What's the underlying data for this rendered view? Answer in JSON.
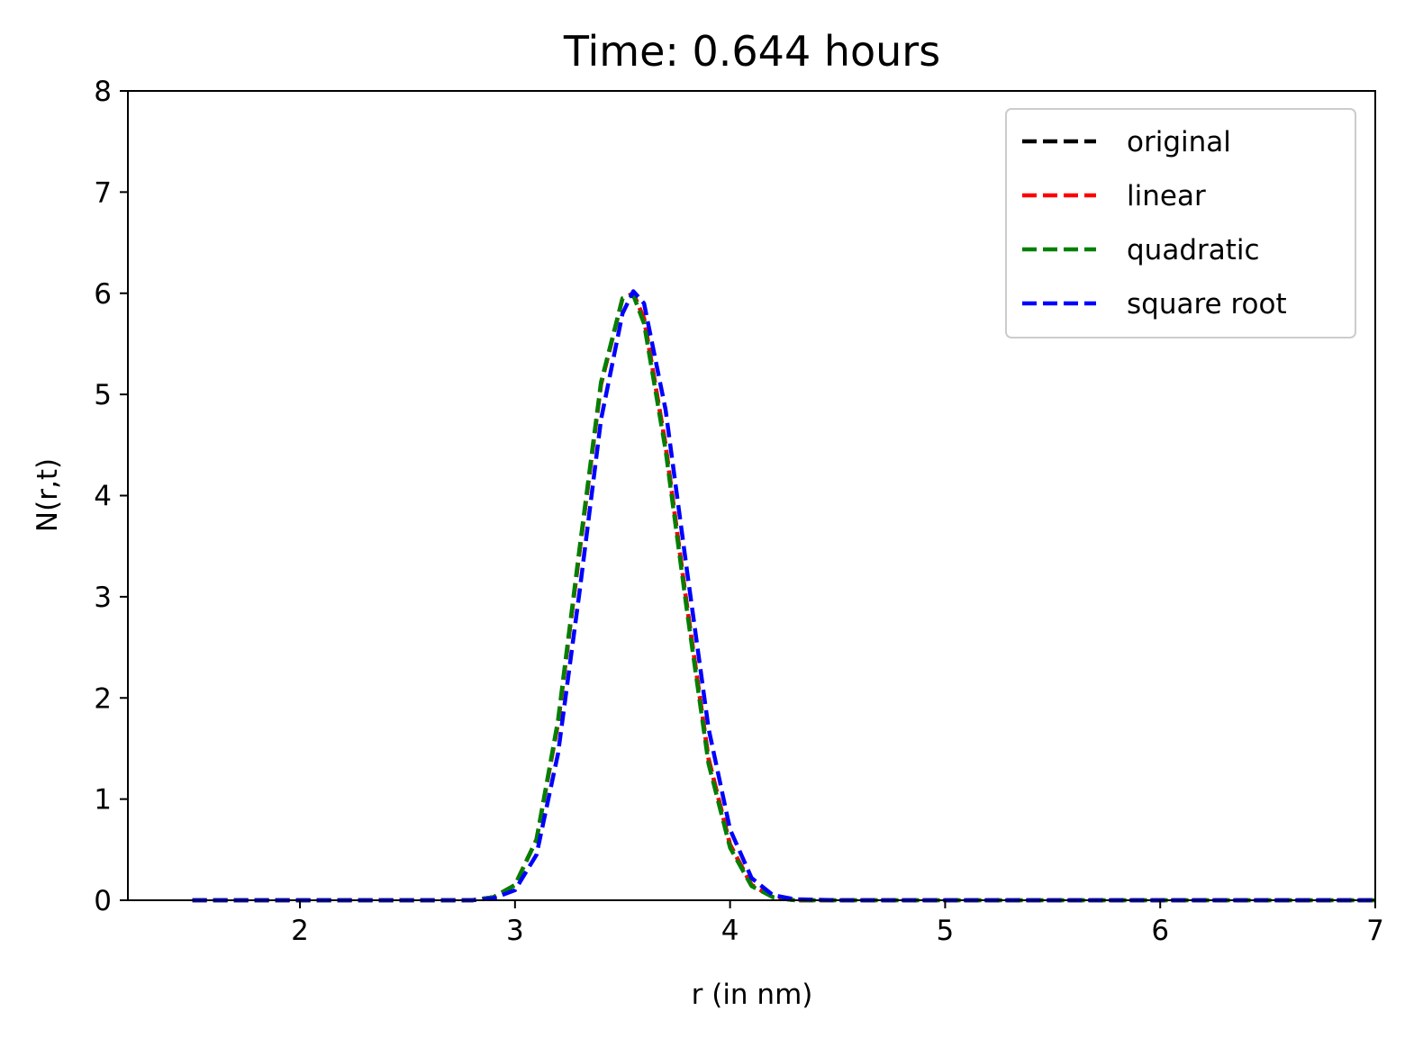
{
  "chart_data": {
    "type": "line",
    "title": "Time: 0.644 hours",
    "xlabel": "r (in nm)",
    "ylabel": "N(r,t)",
    "xlim": [
      1.2,
      7
    ],
    "ylim": [
      0,
      8
    ],
    "xticks": [
      2,
      3,
      4,
      5,
      6,
      7
    ],
    "yticks": [
      0,
      1,
      2,
      3,
      4,
      5,
      6,
      7,
      8
    ],
    "grid": false,
    "legend_position": "upper-right",
    "x": [
      1.5,
      2.0,
      2.5,
      2.8,
      2.9,
      3.0,
      3.1,
      3.2,
      3.3,
      3.4,
      3.5,
      3.55,
      3.6,
      3.7,
      3.8,
      3.9,
      4.0,
      4.1,
      4.2,
      4.3,
      4.5,
      5.0,
      6.0,
      7.0
    ],
    "series": [
      {
        "name": "original",
        "color": "#000000",
        "values": [
          0,
          0,
          0,
          0.0,
          0.03,
          0.15,
          0.6,
          1.75,
          3.45,
          5.1,
          5.95,
          6.0,
          5.75,
          4.5,
          2.9,
          1.4,
          0.55,
          0.15,
          0.03,
          0.0,
          0,
          0,
          0,
          0
        ]
      },
      {
        "name": "linear",
        "color": "#ff0000",
        "values": [
          0,
          0,
          0,
          0.0,
          0.03,
          0.15,
          0.6,
          1.75,
          3.45,
          5.1,
          5.95,
          6.0,
          5.75,
          4.5,
          2.9,
          1.4,
          0.55,
          0.15,
          0.03,
          0.0,
          0,
          0,
          0,
          0
        ]
      },
      {
        "name": "quadratic",
        "color": "#008000",
        "values": [
          0,
          0,
          0,
          0.0,
          0.03,
          0.15,
          0.6,
          1.78,
          3.48,
          5.12,
          5.95,
          5.98,
          5.7,
          4.45,
          2.85,
          1.35,
          0.52,
          0.14,
          0.03,
          0.0,
          0,
          0,
          0,
          0
        ]
      },
      {
        "name": "square root",
        "color": "#0000ff",
        "values": [
          0,
          0,
          0,
          0.0,
          0.02,
          0.1,
          0.45,
          1.45,
          3.05,
          4.75,
          5.8,
          6.02,
          5.9,
          4.85,
          3.25,
          1.7,
          0.7,
          0.22,
          0.05,
          0.01,
          0,
          0,
          0,
          0
        ]
      }
    ]
  }
}
